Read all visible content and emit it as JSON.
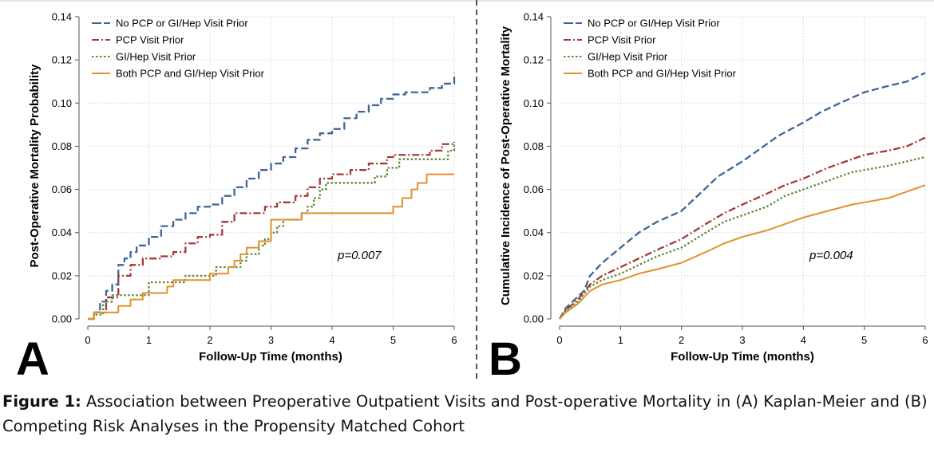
{
  "caption": {
    "label": "Figure 1:",
    "text": " Association between Preoperative Outpatient Visits and Post-operative Mortality in (A) Kaplan-Meier and (B) Competing Risk Analyses in the Propensity Matched Cohort"
  },
  "colors": {
    "none": "#3f6595",
    "pcp": "#a33a3a",
    "gi": "#5f8a3a",
    "both": "#e0922e",
    "grid": "#d3d3d3",
    "axis": "#555555",
    "divider": "#555555"
  },
  "chart_data": [
    {
      "panel": "A",
      "type": "line",
      "step": true,
      "xlabel": "Follow-Up Time (months)",
      "ylabel": "Post-Operative Mortality Probability",
      "xlim": [
        0,
        6
      ],
      "ylim": [
        0,
        0.14
      ],
      "xticks": [
        "0",
        "1",
        "2",
        "3",
        "4",
        "5",
        "6"
      ],
      "yticks": [
        "0.00",
        "0.02",
        "0.04",
        "0.06",
        "0.08",
        "0.10",
        "0.12",
        "0.14"
      ],
      "grid": true,
      "legend": "top-left",
      "annotation": "p=0.007",
      "series": [
        {
          "key": "none",
          "name": "No PCP or GI/Hep Visit Prior",
          "dash": "longdash",
          "points": [
            [
              0,
              0
            ],
            [
              0.1,
              0.003
            ],
            [
              0.2,
              0.008
            ],
            [
              0.3,
              0.013
            ],
            [
              0.4,
              0.016
            ],
            [
              0.5,
              0.025
            ],
            [
              0.6,
              0.028
            ],
            [
              0.7,
              0.031
            ],
            [
              0.8,
              0.034
            ],
            [
              1.0,
              0.038
            ],
            [
              1.2,
              0.043
            ],
            [
              1.4,
              0.046
            ],
            [
              1.6,
              0.049
            ],
            [
              1.8,
              0.052
            ],
            [
              2.0,
              0.053
            ],
            [
              2.2,
              0.057
            ],
            [
              2.4,
              0.061
            ],
            [
              2.6,
              0.065
            ],
            [
              2.8,
              0.069
            ],
            [
              3.0,
              0.072
            ],
            [
              3.2,
              0.075
            ],
            [
              3.4,
              0.079
            ],
            [
              3.6,
              0.083
            ],
            [
              3.8,
              0.086
            ],
            [
              4.0,
              0.088
            ],
            [
              4.2,
              0.093
            ],
            [
              4.4,
              0.096
            ],
            [
              4.6,
              0.099
            ],
            [
              4.8,
              0.102
            ],
            [
              5.0,
              0.104
            ],
            [
              5.2,
              0.105
            ],
            [
              5.5,
              0.105
            ],
            [
              5.6,
              0.107
            ],
            [
              5.8,
              0.109
            ],
            [
              6.0,
              0.114
            ]
          ]
        },
        {
          "key": "pcp",
          "name": "PCP Visit Prior",
          "dash": "dashdot",
          "points": [
            [
              0,
              0
            ],
            [
              0.1,
              0.003
            ],
            [
              0.3,
              0.01
            ],
            [
              0.5,
              0.02
            ],
            [
              0.7,
              0.025
            ],
            [
              0.9,
              0.028
            ],
            [
              1.2,
              0.029
            ],
            [
              1.4,
              0.031
            ],
            [
              1.6,
              0.035
            ],
            [
              1.8,
              0.038
            ],
            [
              2.0,
              0.039
            ],
            [
              2.2,
              0.045
            ],
            [
              2.4,
              0.049
            ],
            [
              2.7,
              0.049
            ],
            [
              2.9,
              0.052
            ],
            [
              3.1,
              0.054
            ],
            [
              3.4,
              0.057
            ],
            [
              3.6,
              0.061
            ],
            [
              3.8,
              0.065
            ],
            [
              4.0,
              0.067
            ],
            [
              4.3,
              0.069
            ],
            [
              4.6,
              0.072
            ],
            [
              4.9,
              0.075
            ],
            [
              5.0,
              0.076
            ],
            [
              5.4,
              0.076
            ],
            [
              5.6,
              0.078
            ],
            [
              5.8,
              0.081
            ],
            [
              6.0,
              0.082
            ]
          ]
        },
        {
          "key": "gi",
          "name": "GI/Hep Visit Prior",
          "dash": "dot",
          "points": [
            [
              0,
              0
            ],
            [
              0.1,
              0.002
            ],
            [
              0.25,
              0.008
            ],
            [
              0.4,
              0.011
            ],
            [
              0.9,
              0.011
            ],
            [
              1.0,
              0.017
            ],
            [
              1.4,
              0.017
            ],
            [
              1.6,
              0.02
            ],
            [
              2.0,
              0.02
            ],
            [
              2.1,
              0.024
            ],
            [
              2.4,
              0.024
            ],
            [
              2.5,
              0.027
            ],
            [
              2.6,
              0.03
            ],
            [
              2.8,
              0.034
            ],
            [
              2.9,
              0.037
            ],
            [
              3.0,
              0.04
            ],
            [
              3.1,
              0.043
            ],
            [
              3.2,
              0.046
            ],
            [
              3.4,
              0.046
            ],
            [
              3.5,
              0.049
            ],
            [
              3.6,
              0.052
            ],
            [
              3.7,
              0.056
            ],
            [
              3.8,
              0.06
            ],
            [
              3.9,
              0.063
            ],
            [
              4.6,
              0.063
            ],
            [
              4.7,
              0.066
            ],
            [
              4.9,
              0.07
            ],
            [
              5.1,
              0.074
            ],
            [
              5.8,
              0.074
            ],
            [
              5.9,
              0.078
            ],
            [
              6.0,
              0.081
            ]
          ]
        },
        {
          "key": "both",
          "name": "Both PCP and GI/Hep Visit Prior",
          "dash": "solid",
          "points": [
            [
              0,
              0
            ],
            [
              0.1,
              0.003
            ],
            [
              0.5,
              0.006
            ],
            [
              0.7,
              0.009
            ],
            [
              0.9,
              0.012
            ],
            [
              1.3,
              0.015
            ],
            [
              1.4,
              0.018
            ],
            [
              1.9,
              0.018
            ],
            [
              2.0,
              0.021
            ],
            [
              2.3,
              0.024
            ],
            [
              2.4,
              0.027
            ],
            [
              2.5,
              0.03
            ],
            [
              2.6,
              0.033
            ],
            [
              2.8,
              0.036
            ],
            [
              3.0,
              0.043
            ],
            [
              3.0,
              0.046
            ],
            [
              3.5,
              0.046
            ],
            [
              3.5,
              0.049
            ],
            [
              5.0,
              0.049
            ],
            [
              5.0,
              0.052
            ],
            [
              5.15,
              0.056
            ],
            [
              5.3,
              0.06
            ],
            [
              5.4,
              0.063
            ],
            [
              5.55,
              0.067
            ],
            [
              6.0,
              0.067
            ]
          ]
        }
      ]
    },
    {
      "panel": "B",
      "type": "line",
      "step": false,
      "xlabel": "Follow-Up Time (months)",
      "ylabel": "Cumulative Incidence of Post-Operative Mortality",
      "xlim": [
        0,
        6
      ],
      "ylim": [
        0,
        0.14
      ],
      "xticks": [
        "0",
        "1",
        "2",
        "3",
        "4",
        "5",
        "6"
      ],
      "yticks": [
        "0.00",
        "0.02",
        "0.04",
        "0.06",
        "0.08",
        "0.10",
        "0.12",
        "0.14"
      ],
      "grid": true,
      "legend": "top-left",
      "annotation": "p=0.004",
      "series": [
        {
          "key": "none",
          "name": "No PCP or GI/Hep Visit Prior",
          "dash": "longdash",
          "points": [
            [
              0,
              0
            ],
            [
              0.1,
              0.005
            ],
            [
              0.25,
              0.009
            ],
            [
              0.4,
              0.013
            ],
            [
              0.5,
              0.02
            ],
            [
              0.7,
              0.026
            ],
            [
              1.0,
              0.033
            ],
            [
              1.3,
              0.04
            ],
            [
              1.6,
              0.045
            ],
            [
              2.0,
              0.05
            ],
            [
              2.3,
              0.058
            ],
            [
              2.6,
              0.066
            ],
            [
              3.0,
              0.073
            ],
            [
              3.3,
              0.079
            ],
            [
              3.6,
              0.085
            ],
            [
              4.0,
              0.091
            ],
            [
              4.3,
              0.096
            ],
            [
              4.6,
              0.1
            ],
            [
              5.0,
              0.105
            ],
            [
              5.4,
              0.108
            ],
            [
              5.7,
              0.11
            ],
            [
              6.0,
              0.114
            ]
          ]
        },
        {
          "key": "pcp",
          "name": "PCP Visit Prior",
          "dash": "dashdot",
          "points": [
            [
              0,
              0
            ],
            [
              0.1,
              0.004
            ],
            [
              0.3,
              0.009
            ],
            [
              0.5,
              0.016
            ],
            [
              0.7,
              0.02
            ],
            [
              1.0,
              0.024
            ],
            [
              1.3,
              0.028
            ],
            [
              1.6,
              0.032
            ],
            [
              2.0,
              0.037
            ],
            [
              2.4,
              0.044
            ],
            [
              2.7,
              0.049
            ],
            [
              3.0,
              0.053
            ],
            [
              3.4,
              0.058
            ],
            [
              3.7,
              0.062
            ],
            [
              4.0,
              0.065
            ],
            [
              4.4,
              0.07
            ],
            [
              4.8,
              0.074
            ],
            [
              5.0,
              0.076
            ],
            [
              5.4,
              0.078
            ],
            [
              5.7,
              0.08
            ],
            [
              6.0,
              0.084
            ]
          ]
        },
        {
          "key": "gi",
          "name": "GI/Hep Visit Prior",
          "dash": "dot",
          "points": [
            [
              0,
              0
            ],
            [
              0.1,
              0.004
            ],
            [
              0.3,
              0.008
            ],
            [
              0.5,
              0.015
            ],
            [
              0.7,
              0.018
            ],
            [
              1.0,
              0.021
            ],
            [
              1.3,
              0.025
            ],
            [
              1.6,
              0.029
            ],
            [
              2.0,
              0.033
            ],
            [
              2.4,
              0.04
            ],
            [
              2.7,
              0.045
            ],
            [
              3.0,
              0.048
            ],
            [
              3.4,
              0.052
            ],
            [
              3.7,
              0.057
            ],
            [
              4.0,
              0.06
            ],
            [
              4.4,
              0.064
            ],
            [
              4.8,
              0.068
            ],
            [
              5.0,
              0.069
            ],
            [
              5.4,
              0.071
            ],
            [
              5.7,
              0.073
            ],
            [
              6.0,
              0.075
            ]
          ]
        },
        {
          "key": "both",
          "name": "Both PCP and GI/Hep Visit Prior",
          "dash": "solid",
          "points": [
            [
              0,
              0
            ],
            [
              0.1,
              0.003
            ],
            [
              0.3,
              0.007
            ],
            [
              0.5,
              0.013
            ],
            [
              0.7,
              0.016
            ],
            [
              1.0,
              0.018
            ],
            [
              1.3,
              0.021
            ],
            [
              1.6,
              0.023
            ],
            [
              2.0,
              0.026
            ],
            [
              2.4,
              0.031
            ],
            [
              2.7,
              0.035
            ],
            [
              3.0,
              0.038
            ],
            [
              3.4,
              0.041
            ],
            [
              3.7,
              0.044
            ],
            [
              4.0,
              0.047
            ],
            [
              4.4,
              0.05
            ],
            [
              4.8,
              0.053
            ],
            [
              5.0,
              0.054
            ],
            [
              5.4,
              0.056
            ],
            [
              5.7,
              0.059
            ],
            [
              6.0,
              0.062
            ]
          ]
        }
      ]
    }
  ]
}
